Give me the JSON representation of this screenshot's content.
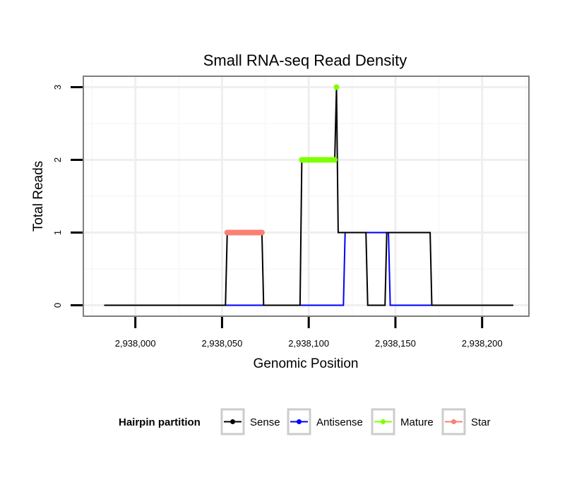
{
  "chart_data": {
    "type": "line",
    "title": "Small RNA-seq Read Density",
    "xlabel": "Genomic Position",
    "ylabel": "Total Reads",
    "xlim": [
      2937970,
      2938227
    ],
    "ylim": [
      -0.15,
      3.15
    ],
    "xticks": [
      2938000,
      2938050,
      2938100,
      2938150,
      2938200
    ],
    "xtick_labels": [
      "2,938,000",
      "2,938,050",
      "2,938,100",
      "2,938,150",
      "2,938,200"
    ],
    "yticks": [
      0,
      1,
      2,
      3
    ],
    "ytick_labels": [
      "0",
      "1",
      "2",
      "3"
    ],
    "grid": true,
    "legend": {
      "title": "Hairpin partition",
      "position": "bottom",
      "entries": [
        {
          "name": "Sense",
          "color": "#000000"
        },
        {
          "name": "Antisense",
          "color": "#0000ff"
        },
        {
          "name": "Mature",
          "color": "#7fff00"
        },
        {
          "name": "Star",
          "color": "#fa8072"
        }
      ]
    },
    "series": [
      {
        "name": "Sense",
        "color": "#000000",
        "style": "line",
        "x": [
          2937982,
          2938052,
          2938053,
          2938073,
          2938074,
          2938095,
          2938096,
          2938115,
          2938116,
          2938117,
          2938133,
          2938134,
          2938144,
          2938145,
          2938170,
          2938171,
          2938218
        ],
        "y": [
          0,
          0,
          1,
          1,
          0,
          0,
          2,
          2,
          3,
          1,
          1,
          0,
          0,
          1,
          1,
          0,
          0
        ]
      },
      {
        "name": "Antisense",
        "color": "#0000ff",
        "style": "line",
        "x": [
          2938052,
          2938120,
          2938121,
          2938146,
          2938147,
          2938171
        ],
        "y": [
          0,
          0,
          1,
          1,
          0,
          0
        ]
      },
      {
        "name": "Mature",
        "color": "#7fff00",
        "style": "points",
        "x": [
          2938096,
          2938097,
          2938098,
          2938099,
          2938100,
          2938101,
          2938102,
          2938103,
          2938104,
          2938105,
          2938106,
          2938107,
          2938108,
          2938109,
          2938110,
          2938111,
          2938112,
          2938113,
          2938114,
          2938115,
          2938116
        ],
        "y": [
          2,
          2,
          2,
          2,
          2,
          2,
          2,
          2,
          2,
          2,
          2,
          2,
          2,
          2,
          2,
          2,
          2,
          2,
          2,
          2,
          3
        ]
      },
      {
        "name": "Star",
        "color": "#fa8072",
        "style": "points",
        "x": [
          2938053,
          2938054,
          2938055,
          2938056,
          2938057,
          2938058,
          2938059,
          2938060,
          2938061,
          2938062,
          2938063,
          2938064,
          2938065,
          2938066,
          2938067,
          2938068,
          2938069,
          2938070,
          2938071,
          2938072,
          2938073
        ],
        "y": [
          1,
          1,
          1,
          1,
          1,
          1,
          1,
          1,
          1,
          1,
          1,
          1,
          1,
          1,
          1,
          1,
          1,
          1,
          1,
          1,
          1
        ]
      }
    ]
  }
}
